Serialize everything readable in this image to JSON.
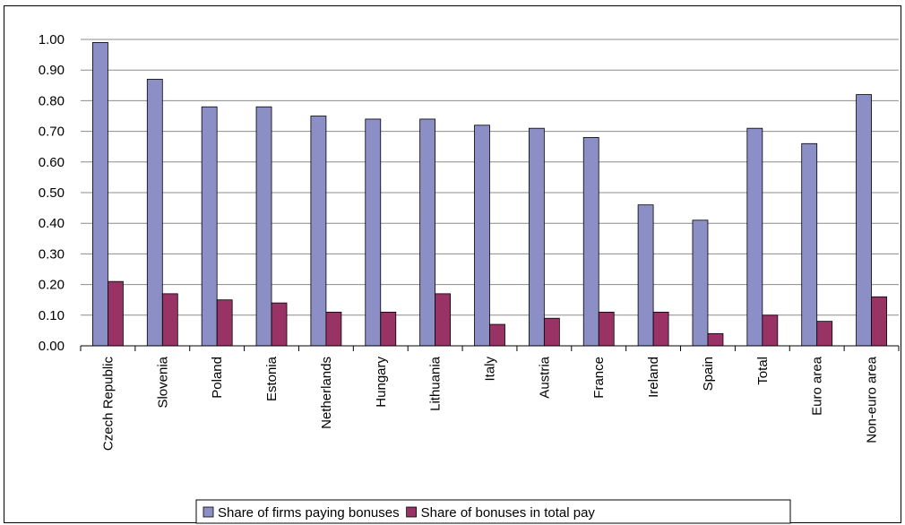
{
  "chart_data": {
    "type": "bar",
    "categories": [
      "Czech Republic",
      "Slovenia",
      "Poland",
      "Estonia",
      "Netherlands",
      "Hungary",
      "Lithuania",
      "Italy",
      "Austria",
      "France",
      "Ireland",
      "Spain",
      "Total",
      "Euro area",
      "Non-euro area"
    ],
    "series": [
      {
        "name": "Share of firms paying bonuses",
        "color": "#8b8fc6",
        "values": [
          0.99,
          0.87,
          0.78,
          0.78,
          0.75,
          0.74,
          0.74,
          0.72,
          0.71,
          0.68,
          0.46,
          0.41,
          0.71,
          0.66,
          0.82
        ]
      },
      {
        "name": "Share of bonuses in total pay",
        "color": "#993366",
        "values": [
          0.21,
          0.17,
          0.15,
          0.14,
          0.11,
          0.11,
          0.17,
          0.07,
          0.09,
          0.11,
          0.11,
          0.04,
          0.1,
          0.08,
          0.16
        ]
      }
    ],
    "yticks": [
      "0.00",
      "0.10",
      "0.20",
      "0.30",
      "0.40",
      "0.50",
      "0.60",
      "0.70",
      "0.80",
      "0.90",
      "1.00"
    ],
    "ylim": [
      0,
      1.0
    ],
    "grid": true,
    "legend_position": "bottom",
    "title": "",
    "xlabel": "",
    "ylabel": ""
  }
}
